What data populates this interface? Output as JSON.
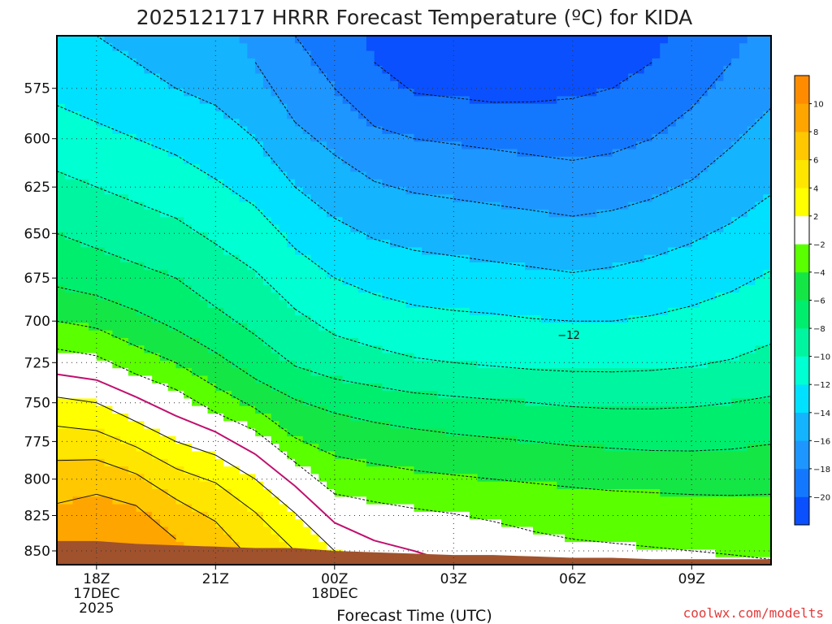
{
  "chart_data": {
    "type": "heatmap",
    "title": "2025121717 HRRR Forecast Temperature (ºC) for KIDA",
    "xlabel": "Forecast Time (UTC)",
    "ylabel": "",
    "x_ticks": [
      {
        "hour": 1,
        "lines": [
          "18Z",
          "17DEC",
          "2025"
        ]
      },
      {
        "hour": 4,
        "lines": [
          "21Z"
        ]
      },
      {
        "hour": 7,
        "lines": [
          "00Z",
          "18DEC"
        ]
      },
      {
        "hour": 10,
        "lines": [
          "03Z"
        ]
      },
      {
        "hour": 13,
        "lines": [
          "06Z"
        ]
      },
      {
        "hour": 16,
        "lines": [
          "09Z"
        ]
      }
    ],
    "x_range_hours": [
      0,
      18
    ],
    "y_ticks": [
      575,
      600,
      625,
      650,
      675,
      700,
      725,
      750,
      775,
      800,
      825,
      850
    ],
    "y_range_hpa": [
      550,
      860
    ],
    "y_scale": "log",
    "grid": true,
    "contour_label": {
      "text": "−12",
      "hour": 12.9,
      "pressure_hpa": 708
    },
    "colorbar": {
      "levels": [
        -22,
        -20,
        -18,
        -16,
        -14,
        -12,
        -10,
        -8,
        -6,
        -4,
        -2,
        2,
        4,
        6,
        8,
        10,
        12
      ],
      "labels": [
        "−20",
        "−18",
        "−16",
        "−14",
        "−12",
        "−10",
        "−8",
        "−6",
        "−4",
        "−2",
        "2",
        "4",
        "6",
        "8",
        "10"
      ],
      "colors": [
        "#0a50ff",
        "#1478ff",
        "#1e96ff",
        "#14b4ff",
        "#00e1ff",
        "#00ffd2",
        "#00f5a0",
        "#00ee6e",
        "#14e646",
        "#5aff00",
        "#ffffff",
        "#ffff00",
        "#ffe600",
        "#ffc800",
        "#ffa500",
        "#ff8c00"
      ]
    },
    "terrain": {
      "color": "#a0522d",
      "surface_hpa": [
        843,
        843,
        845,
        846,
        847,
        848,
        848,
        850,
        851,
        852,
        853,
        853,
        854,
        855,
        855,
        856,
        856,
        856,
        856
      ]
    },
    "temperature_profiles": {
      "pressures_hpa": [
        550,
        575,
        600,
        625,
        650,
        675,
        700,
        725,
        750,
        775,
        800,
        825,
        850
      ],
      "values_by_hour": [
        [
          -13.5,
          -12.5,
          -11.0,
          -9.5,
          -8.0,
          -6.5,
          -4.0,
          -1.0,
          2.5,
          5.0,
          7.0,
          8.5,
          9.5
        ],
        [
          -14.0,
          -13.0,
          -11.5,
          -10.0,
          -8.5,
          -7.0,
          -4.5,
          -1.5,
          2.0,
          4.8,
          7.3,
          9.0,
          10.3
        ],
        [
          -14.5,
          -13.5,
          -12.0,
          -10.5,
          -9.0,
          -7.5,
          -5.5,
          -3.0,
          0.5,
          3.6,
          6.4,
          8.6,
          10.0
        ],
        [
          -15.0,
          -14.0,
          -12.5,
          -11.0,
          -9.5,
          -8.0,
          -6.5,
          -4.0,
          -1.0,
          2.0,
          4.8,
          7.0,
          8.5
        ],
        [
          -15.5,
          -14.5,
          -13.0,
          -11.8,
          -10.3,
          -9.0,
          -7.5,
          -5.5,
          -3.0,
          1.0,
          3.8,
          5.8,
          7.0
        ],
        [
          -16.5,
          -15.5,
          -14.0,
          -12.7,
          -11.0,
          -9.8,
          -8.5,
          -7.0,
          -4.5,
          -1.0,
          2.0,
          4.2,
          5.5
        ],
        [
          -18.0,
          -17.0,
          -15.5,
          -14.0,
          -12.5,
          -11.0,
          -9.6,
          -8.2,
          -5.8,
          -3.8,
          -0.5,
          2.2,
          4.0
        ],
        [
          -19.0,
          -18.0,
          -16.5,
          -15.0,
          -13.5,
          -12.0,
          -10.5,
          -9.0,
          -6.5,
          -4.6,
          -3.0,
          -0.5,
          2.0
        ],
        [
          -20.5,
          -19.5,
          -17.5,
          -15.8,
          -14.2,
          -12.6,
          -11.0,
          -9.4,
          -7.0,
          -5.0,
          -3.3,
          -1.2,
          0.5
        ],
        [
          -21.0,
          -20.2,
          -18.0,
          -16.2,
          -14.6,
          -13.0,
          -11.4,
          -9.8,
          -7.4,
          -5.3,
          -3.6,
          -1.6,
          0.0
        ],
        [
          -21.2,
          -20.4,
          -18.2,
          -16.4,
          -14.8,
          -13.2,
          -11.6,
          -10.0,
          -7.6,
          -5.6,
          -3.8,
          -1.9,
          -0.5
        ],
        [
          -21.4,
          -20.6,
          -18.4,
          -16.6,
          -15.0,
          -13.4,
          -11.7,
          -10.2,
          -7.8,
          -5.8,
          -4.0,
          -2.2,
          -1.0
        ],
        [
          -21.5,
          -20.5,
          -18.6,
          -16.8,
          -15.2,
          -13.6,
          -11.9,
          -10.4,
          -8.0,
          -6.0,
          -4.2,
          -2.4,
          -1.5
        ],
        [
          -21.3,
          -20.3,
          -18.8,
          -17.0,
          -15.4,
          -13.8,
          -12.0,
          -10.5,
          -8.2,
          -6.2,
          -4.4,
          -2.6,
          -1.7
        ],
        [
          -21.0,
          -20.0,
          -18.5,
          -16.8,
          -15.2,
          -13.6,
          -12.0,
          -10.5,
          -8.3,
          -6.3,
          -4.6,
          -2.7,
          -1.8
        ],
        [
          -20.5,
          -19.5,
          -18.0,
          -16.4,
          -14.8,
          -13.3,
          -11.8,
          -10.4,
          -8.3,
          -6.4,
          -4.7,
          -2.8,
          -1.9
        ],
        [
          -19.5,
          -18.5,
          -17.2,
          -15.8,
          -14.3,
          -12.9,
          -11.5,
          -10.2,
          -8.2,
          -6.4,
          -4.8,
          -2.9,
          -2.0
        ],
        [
          -18.5,
          -17.5,
          -16.2,
          -15.0,
          -13.7,
          -12.4,
          -11.1,
          -9.9,
          -8.0,
          -6.3,
          -4.8,
          -3.0,
          -2.1
        ],
        [
          -17.5,
          -16.5,
          -15.2,
          -14.2,
          -13.0,
          -11.8,
          -10.6,
          -9.5,
          -7.7,
          -6.1,
          -4.7,
          -3.0,
          -2.2
        ]
      ]
    }
  },
  "credit": "coolwx.com/modelts"
}
